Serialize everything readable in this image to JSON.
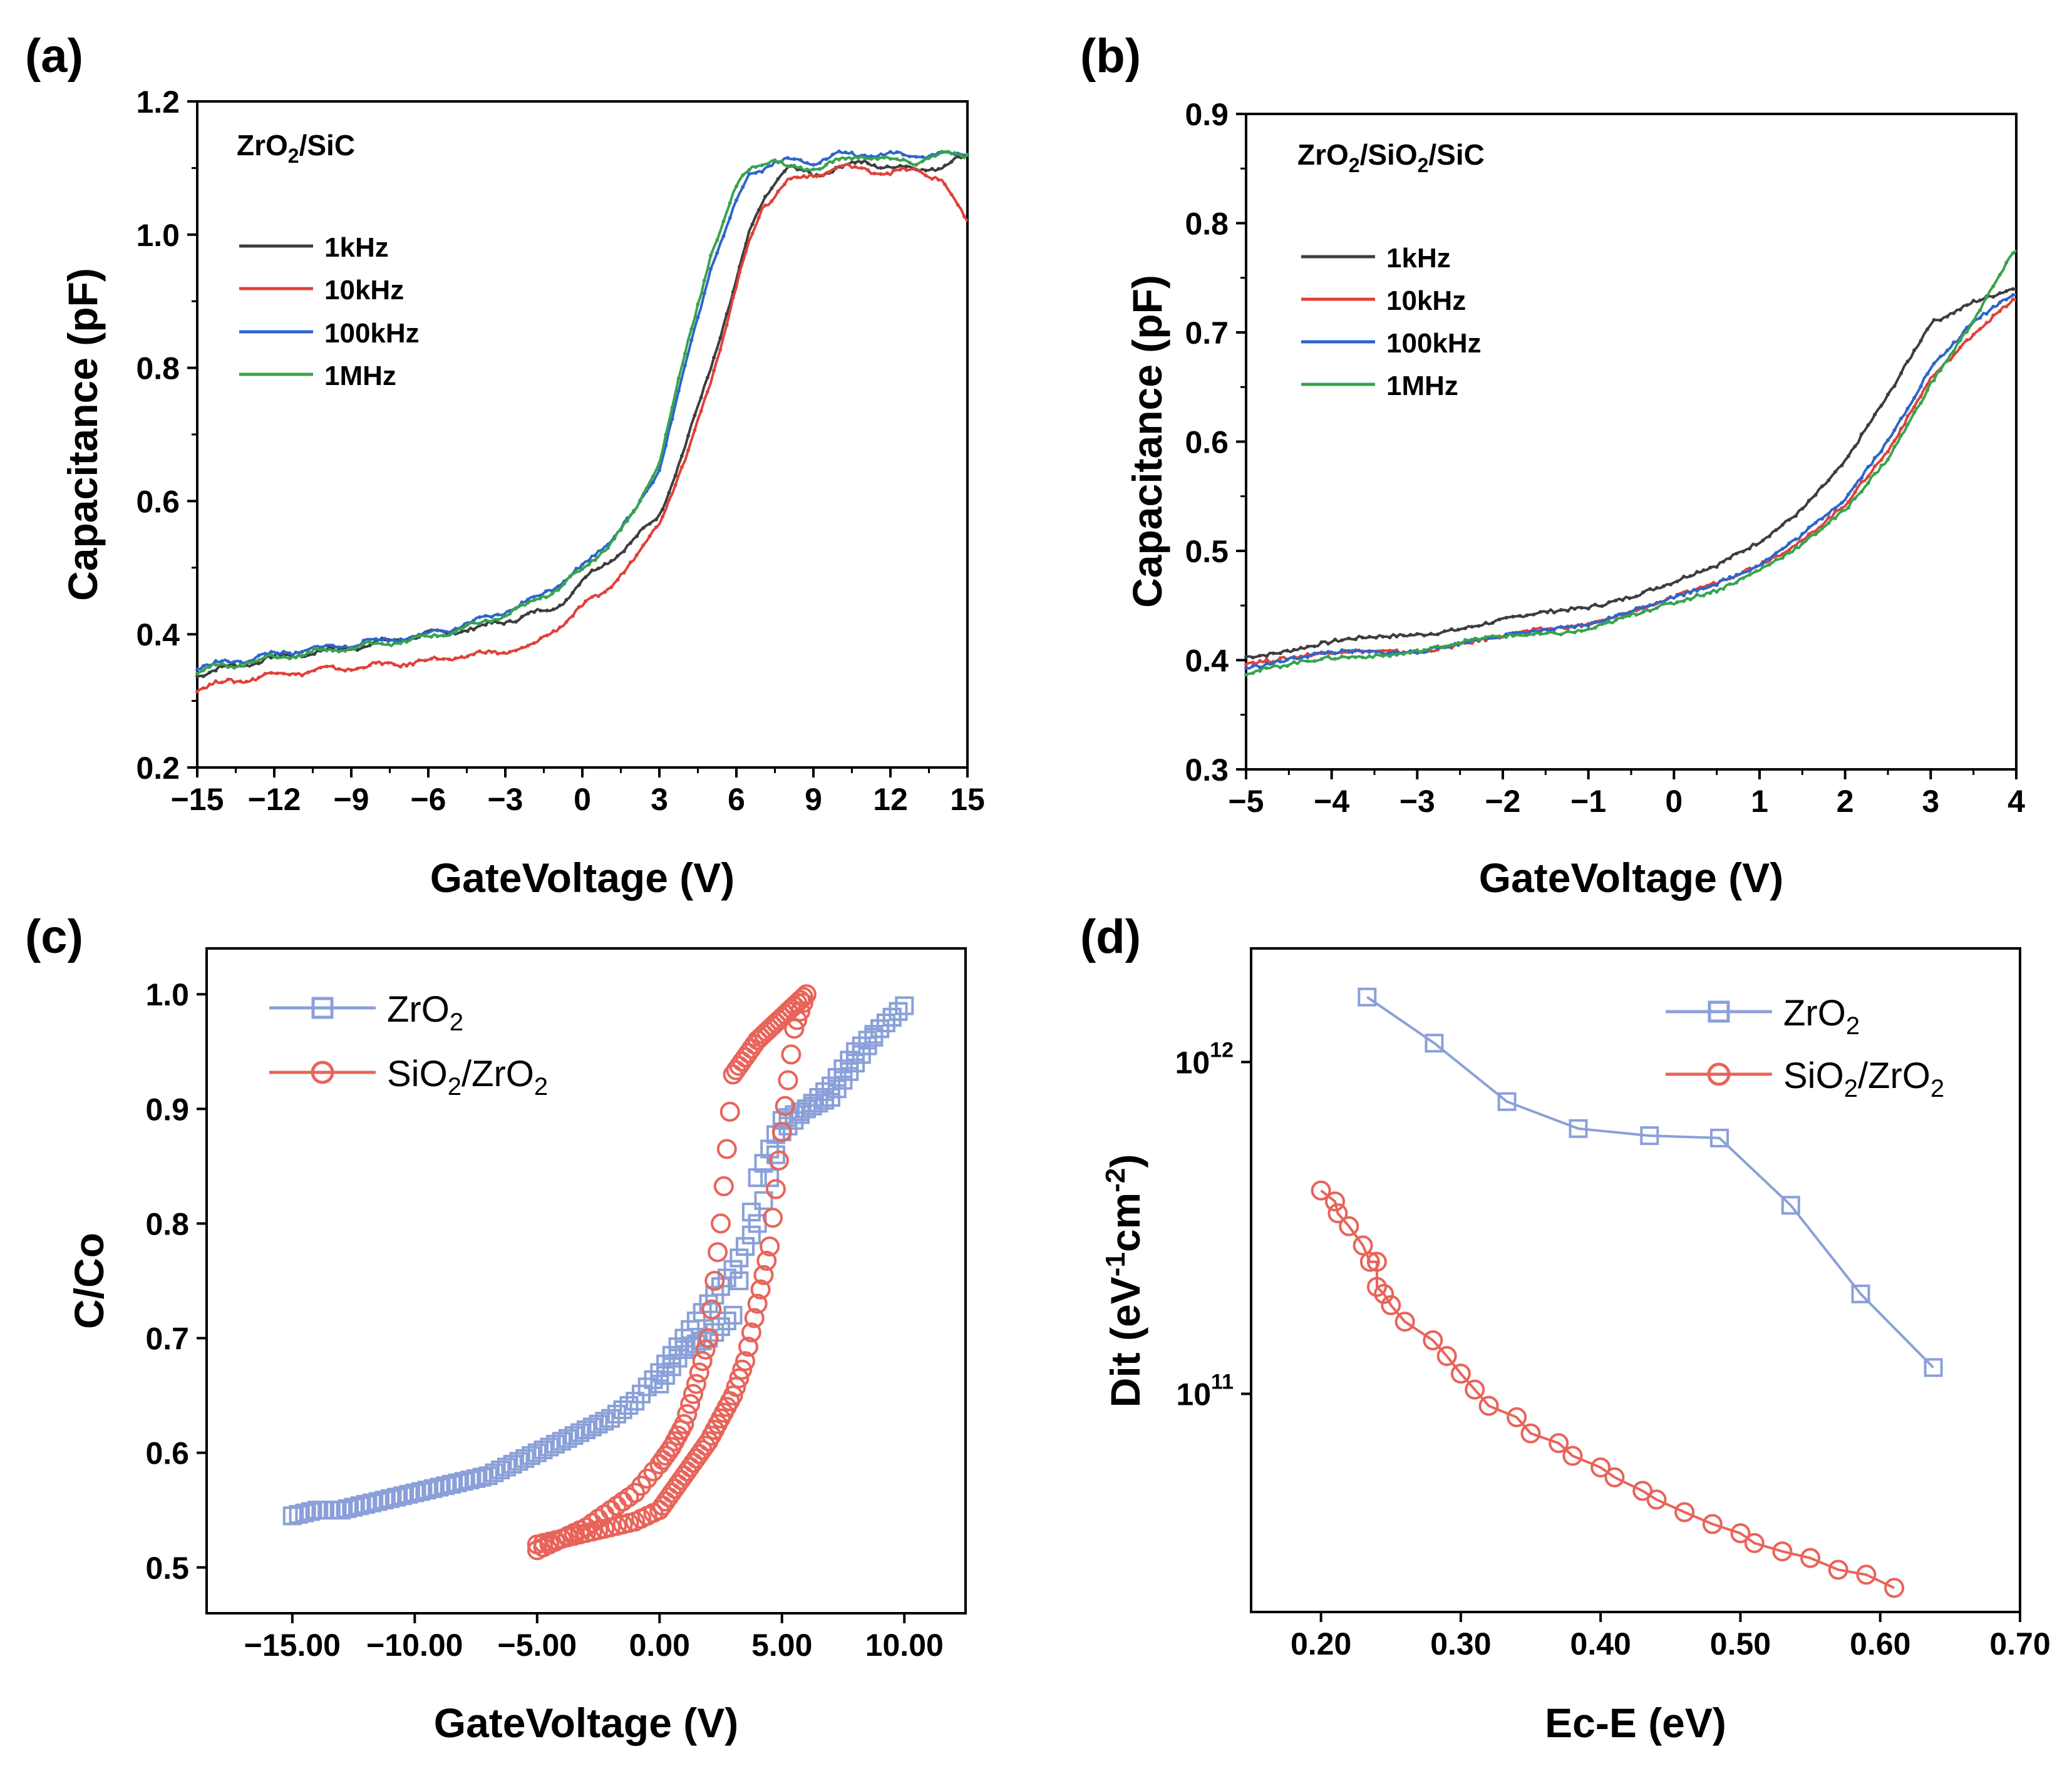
{
  "chart_data": [
    {
      "panel": "(a)",
      "type": "line",
      "annotation": {
        "main": "ZrO",
        "sub": "2",
        "tail": "/SiC"
      },
      "xlabel": "GateVoltage (V)",
      "ylabel": "Capacitance (pF)",
      "xlim": [
        -15,
        15
      ],
      "ylim": [
        0.2,
        1.2
      ],
      "xticks": [
        -15,
        -12,
        -9,
        -6,
        -3,
        0,
        3,
        6,
        9,
        12,
        15
      ],
      "xtick_labels": [
        "−15",
        "−12",
        "−9",
        "−6",
        "−3",
        "0",
        "3",
        "6",
        "9",
        "12",
        "15"
      ],
      "yticks": [
        0.2,
        0.4,
        0.6,
        0.8,
        1.0,
        1.2
      ],
      "ytick_labels": [
        "0.2",
        "0.4",
        "0.6",
        "0.8",
        "1.0",
        "1.2"
      ],
      "legend_position": "upper-left",
      "series": [
        {
          "name": "1kHz",
          "color": "#3d3d3d",
          "x": [
            -15,
            -12,
            -9,
            -6,
            -4,
            -2,
            -1,
            0,
            1,
            2,
            3,
            4,
            5,
            6,
            6.5,
            7,
            7.5,
            8,
            9,
            10,
            11,
            12,
            13,
            14,
            15
          ],
          "values": [
            0.34,
            0.365,
            0.38,
            0.4,
            0.41,
            0.43,
            0.44,
            0.48,
            0.51,
            0.54,
            0.58,
            0.68,
            0.8,
            0.93,
            1.0,
            1.05,
            1.08,
            1.1,
            1.09,
            1.1,
            1.11,
            1.1,
            1.1,
            1.1,
            1.12
          ]
        },
        {
          "name": "10kHz",
          "color": "#e0413a",
          "x": [
            -15,
            -12,
            -9,
            -6,
            -4,
            -2,
            -1,
            0,
            1,
            2,
            3,
            4,
            5,
            6,
            6.5,
            7,
            7.5,
            8,
            9,
            10,
            11,
            12,
            13,
            14,
            15
          ],
          "values": [
            0.32,
            0.34,
            0.35,
            0.36,
            0.37,
            0.38,
            0.41,
            0.44,
            0.47,
            0.51,
            0.57,
            0.66,
            0.78,
            0.92,
            0.99,
            1.04,
            1.06,
            1.08,
            1.09,
            1.1,
            1.1,
            1.09,
            1.1,
            1.08,
            1.02
          ]
        },
        {
          "name": "100kHz",
          "color": "#2c66c9",
          "x": [
            -15,
            -12,
            -9,
            -6,
            -4,
            -2,
            0,
            1,
            2,
            3,
            4,
            5,
            6,
            6.5,
            7,
            7.5,
            8,
            9,
            10,
            11,
            12,
            13,
            14,
            15
          ],
          "values": [
            0.35,
            0.37,
            0.385,
            0.4,
            0.42,
            0.45,
            0.5,
            0.54,
            0.58,
            0.65,
            0.8,
            0.95,
            1.05,
            1.09,
            1.1,
            1.11,
            1.11,
            1.11,
            1.12,
            1.12,
            1.12,
            1.12,
            1.12,
            1.12
          ]
        },
        {
          "name": "1MHz",
          "color": "#38a34f",
          "x": [
            -15,
            -12,
            -9,
            -6,
            -4,
            -2,
            0,
            1,
            2,
            3,
            4,
            5,
            6,
            6.5,
            7,
            7.5,
            8,
            9,
            10,
            11,
            12,
            13,
            14,
            15
          ],
          "values": [
            0.345,
            0.365,
            0.38,
            0.395,
            0.415,
            0.445,
            0.495,
            0.535,
            0.58,
            0.66,
            0.82,
            0.97,
            1.07,
            1.1,
            1.11,
            1.11,
            1.1,
            1.1,
            1.11,
            1.12,
            1.11,
            1.11,
            1.12,
            1.12
          ]
        }
      ]
    },
    {
      "panel": "(b)",
      "type": "line",
      "annotation": {
        "main": "ZrO",
        "sub": "2",
        "tail": "/SiO",
        "sub2": "2",
        "tail2": "/SiC"
      },
      "xlabel": "GateVoltage (V)",
      "ylabel": "Capacitance (pF)",
      "xlim": [
        -5,
        4
      ],
      "ylim": [
        0.3,
        0.9
      ],
      "xticks": [
        -5,
        -4,
        -3,
        -2,
        -1,
        0,
        1,
        2,
        3,
        4
      ],
      "xtick_labels": [
        "−5",
        "−4",
        "−3",
        "−2",
        "−1",
        "0",
        "1",
        "2",
        "3",
        "4"
      ],
      "yticks": [
        0.3,
        0.4,
        0.5,
        0.6,
        0.7,
        0.8,
        0.9
      ],
      "ytick_labels": [
        "0.3",
        "0.4",
        "0.5",
        "0.6",
        "0.7",
        "0.8",
        "0.9"
      ],
      "legend_position": "upper-left",
      "series": [
        {
          "name": "1kHz",
          "color": "#3d3d3d",
          "x": [
            -5,
            -4,
            -3,
            -2,
            -1,
            0,
            0.5,
            1,
            1.5,
            2,
            2.5,
            3,
            3.5,
            4
          ],
          "values": [
            0.405,
            0.415,
            0.425,
            0.435,
            0.45,
            0.47,
            0.485,
            0.51,
            0.54,
            0.58,
            0.64,
            0.71,
            0.73,
            0.74
          ]
        },
        {
          "name": "10kHz",
          "color": "#e0413a",
          "x": [
            -5,
            -4,
            -3,
            -2,
            -1,
            0,
            0.5,
            1,
            1.5,
            2,
            2.5,
            3,
            3.5,
            4
          ],
          "values": [
            0.4,
            0.405,
            0.41,
            0.42,
            0.435,
            0.455,
            0.47,
            0.49,
            0.51,
            0.54,
            0.59,
            0.66,
            0.7,
            0.73
          ]
        },
        {
          "name": "100kHz",
          "color": "#2c66c9",
          "x": [
            -5,
            -4,
            -3,
            -2,
            -1,
            0,
            0.5,
            1,
            1.5,
            2,
            2.5,
            3,
            3.5,
            4
          ],
          "values": [
            0.395,
            0.405,
            0.41,
            0.42,
            0.435,
            0.455,
            0.47,
            0.49,
            0.515,
            0.545,
            0.6,
            0.67,
            0.71,
            0.735
          ]
        },
        {
          "name": "1MHz",
          "color": "#38a34f",
          "x": [
            -5,
            -4,
            -3,
            -2,
            -1,
            0,
            0.5,
            1,
            1.5,
            2,
            2.5,
            3,
            3.5,
            4
          ],
          "values": [
            0.39,
            0.4,
            0.41,
            0.42,
            0.43,
            0.45,
            0.465,
            0.485,
            0.505,
            0.535,
            0.585,
            0.655,
            0.71,
            0.775
          ]
        }
      ]
    },
    {
      "panel": "(c)",
      "type": "scatter",
      "xlabel": "GateVoltage (V)",
      "ylabel": "C/Co",
      "xlim": [
        -18.5,
        12.5
      ],
      "ylim": [
        0.46,
        1.04
      ],
      "xticks": [
        -15,
        -10,
        -5,
        0,
        5,
        10
      ],
      "xtick_labels": [
        "−15.00",
        "−10.00",
        "−5.00",
        "0.00",
        "5.00",
        "10.00"
      ],
      "yticks": [
        0.5,
        0.6,
        0.7,
        0.8,
        0.9,
        1.0
      ],
      "ytick_labels": [
        "0.5",
        "0.6",
        "0.7",
        "0.8",
        "0.9",
        "1.0"
      ],
      "legend_position": "upper-left",
      "series": [
        {
          "name": "ZrO2",
          "label_main": "ZrO",
          "label_sub": "2",
          "label_tail": "",
          "color": "#8aa0d8",
          "marker": "square",
          "x": [
            -15,
            -14,
            -13,
            -12,
            -11,
            -10,
            -9,
            -8,
            -7,
            -6,
            -5,
            -4,
            -3,
            -2,
            -1,
            0,
            1,
            2,
            3,
            4,
            5,
            6,
            7,
            8,
            9,
            10,
            9,
            8,
            7,
            6,
            5,
            4,
            3,
            2,
            1,
            0
          ],
          "values": [
            0.545,
            0.55,
            0.55,
            0.555,
            0.56,
            0.565,
            0.57,
            0.575,
            0.58,
            0.59,
            0.6,
            0.61,
            0.62,
            0.63,
            0.645,
            0.67,
            0.7,
            0.73,
            0.76,
            0.8,
            0.88,
            0.9,
            0.92,
            0.95,
            0.97,
            0.99,
            0.97,
            0.94,
            0.91,
            0.9,
            0.89,
            0.84,
            0.72,
            0.7,
            0.69,
            0.66
          ]
        },
        {
          "name": "SiO2/ZrO2",
          "label_main": "SiO",
          "label_sub": "2",
          "label_tail": "/ZrO",
          "label_sub2": "2",
          "color": "#e8645a",
          "marker": "circle",
          "x": [
            -5,
            -4,
            -3,
            -2,
            -1,
            0,
            0.5,
            1,
            1.5,
            2,
            2.5,
            3,
            3.5,
            4,
            4.5,
            5,
            5.5,
            6,
            5.5,
            5,
            4.5,
            4,
            3.5,
            3,
            2.5,
            2,
            1.5,
            1,
            0.5,
            0,
            -1,
            -2,
            -3,
            -4,
            -5
          ],
          "values": [
            0.515,
            0.525,
            0.535,
            0.55,
            0.565,
            0.59,
            0.605,
            0.625,
            0.66,
            0.7,
            0.8,
            0.93,
            0.945,
            0.96,
            0.97,
            0.98,
            0.99,
            1.0,
            0.97,
            0.88,
            0.78,
            0.73,
            0.68,
            0.65,
            0.63,
            0.61,
            0.595,
            0.58,
            0.565,
            0.55,
            0.54,
            0.535,
            0.53,
            0.525,
            0.52
          ]
        }
      ]
    },
    {
      "panel": "(d)",
      "type": "scatter",
      "xlabel": "Ec-E (eV)",
      "ylabel_parts": {
        "a": "Dit (eV",
        "b": "-1",
        "c": "cm",
        "d": "-2",
        "e": ")"
      },
      "xlim": [
        0.15,
        0.7
      ],
      "ylog": true,
      "ylim": [
        22000000000.0,
        2200000000000.0
      ],
      "xticks": [
        0.2,
        0.3,
        0.4,
        0.5,
        0.6,
        0.7
      ],
      "xtick_labels": [
        "0.20",
        "0.30",
        "0.40",
        "0.50",
        "0.60",
        "0.70"
      ],
      "yticks": [
        100000000000.0,
        1000000000000.0
      ],
      "ytick_base": [
        "10",
        "10"
      ],
      "ytick_exp": [
        "11",
        "12"
      ],
      "legend_position": "upper-right",
      "series": [
        {
          "name": "ZrO2",
          "label_main": "ZrO",
          "label_sub": "2",
          "label_tail": "",
          "color": "#8aa0d8",
          "marker": "square",
          "x": [
            0.233,
            0.281,
            0.333,
            0.384,
            0.435,
            0.485,
            0.536,
            0.586,
            0.638
          ],
          "values": [
            1570000000000.0,
            1140000000000.0,
            760000000000.0,
            630000000000.0,
            600000000000.0,
            590000000000.0,
            370000000000.0,
            200000000000.0,
            120000000000.0
          ]
        },
        {
          "name": "SiO2/ZrO2",
          "label_main": "SiO",
          "label_sub": "2",
          "label_tail": "/ZrO",
          "label_sub2": "2",
          "color": "#e8645a",
          "marker": "circle",
          "x": [
            0.2,
            0.21,
            0.212,
            0.22,
            0.23,
            0.235,
            0.24,
            0.24,
            0.245,
            0.25,
            0.26,
            0.28,
            0.29,
            0.3,
            0.31,
            0.32,
            0.34,
            0.35,
            0.37,
            0.38,
            0.4,
            0.41,
            0.43,
            0.44,
            0.46,
            0.48,
            0.5,
            0.51,
            0.53,
            0.55,
            0.57,
            0.59,
            0.61
          ],
          "values": [
            410000000000.0,
            380000000000.0,
            350000000000.0,
            320000000000.0,
            280000000000.0,
            250000000000.0,
            250000000000.0,
            210000000000.0,
            200000000000.0,
            185000000000.0,
            165000000000.0,
            145000000000.0,
            130000000000.0,
            115000000000.0,
            103000000000.0,
            92000000000.0,
            85000000000.0,
            76000000000.0,
            71000000000.0,
            65000000000.0,
            60000000000.0,
            56000000000.0,
            51000000000.0,
            48000000000.0,
            44000000000.0,
            40500000000.0,
            38000000000.0,
            35500000000.0,
            33500000000.0,
            32000000000.0,
            29500000000.0,
            28500000000.0,
            26000000000.0
          ]
        }
      ]
    }
  ]
}
